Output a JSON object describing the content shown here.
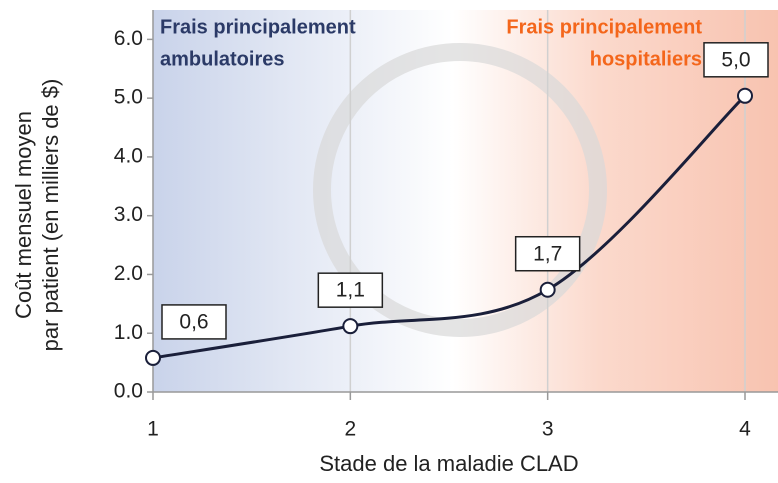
{
  "chart_data": {
    "type": "line",
    "x_label": "Stade de la maladie CLAD",
    "y_label": [
      "Coût mensuel moyen",
      "par patient (en milliers de $)"
    ],
    "annotations": [
      {
        "text": [
          "Frais principalement",
          "ambulatoires"
        ],
        "color": "#2b3a67"
      },
      {
        "text": [
          "Frais principalement",
          "hospitaliers"
        ],
        "color": "#f4661b"
      }
    ],
    "x": [
      1,
      2,
      3,
      4
    ],
    "series": [
      {
        "color": "#1a1f3a",
        "values": [
          0.58,
          1.12,
          1.74,
          5.04
        ],
        "value_labels": [
          "0,6",
          "1,1",
          "1,7",
          "5,0"
        ]
      }
    ],
    "xlim": [
      1,
      4
    ],
    "xticks": [
      1,
      2,
      3,
      4
    ],
    "ylim": [
      0,
      6.5
    ],
    "yticks": [
      {
        "value": 0,
        "label": "0.0"
      },
      {
        "value": 1,
        "label": "1.0"
      },
      {
        "value": 2,
        "label": "2.0"
      },
      {
        "value": 3,
        "label": "3.0"
      },
      {
        "value": 4,
        "label": "4.0"
      },
      {
        "value": 5,
        "label": "5.0"
      },
      {
        "value": 6,
        "label": "6.0"
      }
    ],
    "grid": true
  }
}
